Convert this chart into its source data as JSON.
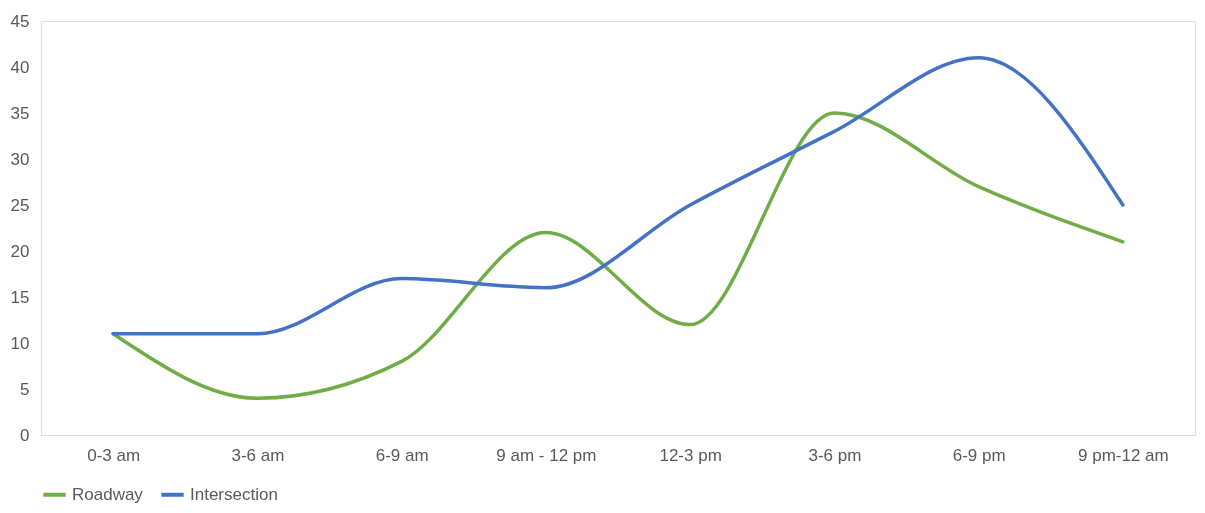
{
  "chart_data": {
    "type": "line",
    "categories": [
      "0-3 am",
      "3-6 am",
      "6-9 am",
      "9 am - 12 pm",
      "12-3 pm",
      "3-6 pm",
      "6-9 pm",
      "9 pm-12 am"
    ],
    "series": [
      {
        "name": "Roadway",
        "color": "#70ad47",
        "values": [
          11,
          4,
          8,
          22,
          12,
          35,
          27,
          21
        ]
      },
      {
        "name": "Intersection",
        "color": "#4472c4",
        "values": [
          11,
          11,
          17,
          16,
          25,
          33,
          41,
          25
        ]
      }
    ],
    "ylim": [
      0,
      45
    ],
    "yticks": [
      0,
      5,
      10,
      15,
      20,
      25,
      30,
      35,
      40,
      45
    ],
    "grid": false,
    "legend": "bottom",
    "marker": "none",
    "line_style": "solid"
  }
}
